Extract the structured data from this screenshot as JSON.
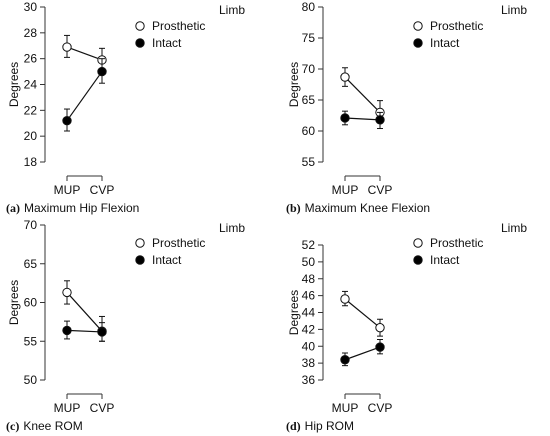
{
  "chart_data": [
    {
      "type": "line",
      "panel_label": "(a)",
      "title": "Maximum Hip Flexion",
      "ylabel": "Degrees",
      "xlabel": "",
      "categories": [
        "MUP",
        "CVP"
      ],
      "ylim": [
        18,
        30
      ],
      "yticks": [
        18,
        20,
        22,
        24,
        26,
        28,
        30
      ],
      "legend_title": "Limb",
      "legend_position": "top-right",
      "grid": false,
      "series": [
        {
          "name": "Prosthetic",
          "marker": "open-circle",
          "values": [
            26.9,
            25.9
          ],
          "err_low": [
            26.1,
            25.1
          ],
          "err_high": [
            27.8,
            26.8
          ]
        },
        {
          "name": "Intact",
          "marker": "filled-circle",
          "values": [
            21.2,
            25.0
          ],
          "err_low": [
            20.4,
            24.1
          ],
          "err_high": [
            22.1,
            26.0
          ]
        }
      ]
    },
    {
      "type": "line",
      "panel_label": "(b)",
      "title": "Maximum Knee Flexion",
      "ylabel": "Degrees",
      "xlabel": "",
      "categories": [
        "MUP",
        "CVP"
      ],
      "ylim": [
        55,
        80
      ],
      "yticks": [
        55,
        60,
        65,
        70,
        75,
        80
      ],
      "legend_title": "Limb",
      "legend_position": "top-right",
      "grid": false,
      "series": [
        {
          "name": "Prosthetic",
          "marker": "open-circle",
          "values": [
            68.7,
            63.0
          ],
          "err_low": [
            67.2,
            61.3
          ],
          "err_high": [
            70.2,
            64.9
          ]
        },
        {
          "name": "Intact",
          "marker": "filled-circle",
          "values": [
            62.1,
            61.8
          ],
          "err_low": [
            61.0,
            60.4
          ],
          "err_high": [
            63.2,
            63.0
          ]
        }
      ]
    },
    {
      "type": "line",
      "panel_label": "(c)",
      "title": "Knee ROM",
      "ylabel": "Degrees",
      "xlabel": "",
      "categories": [
        "MUP",
        "CVP"
      ],
      "ylim": [
        50,
        70
      ],
      "yticks": [
        50,
        55,
        60,
        65,
        70
      ],
      "legend_title": "Limb",
      "legend_position": "top-right",
      "grid": false,
      "series": [
        {
          "name": "Prosthetic",
          "marker": "open-circle",
          "values": [
            61.3,
            56.3
          ],
          "err_low": [
            59.8,
            55.0
          ],
          "err_high": [
            62.8,
            58.2
          ]
        },
        {
          "name": "Intact",
          "marker": "filled-circle",
          "values": [
            56.4,
            56.2
          ],
          "err_low": [
            55.3,
            55.0
          ],
          "err_high": [
            57.6,
            57.4
          ]
        }
      ]
    },
    {
      "type": "line",
      "panel_label": "(d)",
      "title": "Hip ROM",
      "ylabel": "Degrees",
      "xlabel": "",
      "categories": [
        "MUP",
        "CVP"
      ],
      "ylim": [
        36,
        52
      ],
      "yticks": [
        36,
        38,
        40,
        42,
        44,
        46,
        48,
        50,
        52
      ],
      "legend_title": "Limb",
      "legend_position": "top-right",
      "grid": false,
      "series": [
        {
          "name": "Prosthetic",
          "marker": "open-circle",
          "values": [
            45.6,
            42.2
          ],
          "err_low": [
            44.8,
            41.2
          ],
          "err_high": [
            46.5,
            43.2
          ]
        },
        {
          "name": "Intact",
          "marker": "filled-circle",
          "values": [
            38.4,
            39.9
          ],
          "err_low": [
            37.7,
            39.1
          ],
          "err_high": [
            39.2,
            40.8
          ]
        }
      ]
    }
  ]
}
